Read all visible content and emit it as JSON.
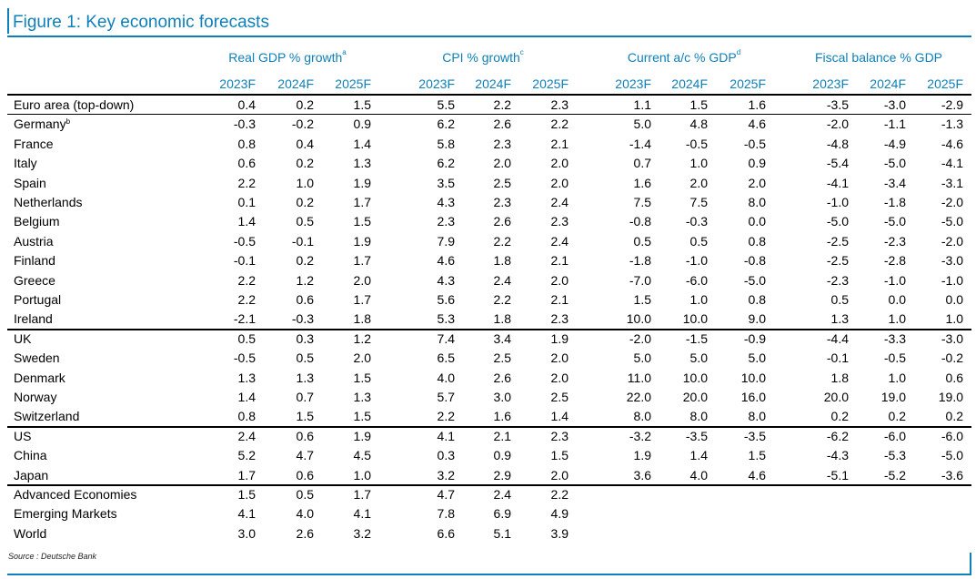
{
  "title": "Figure 1: Key economic forecasts",
  "source": "Source : Deutsche Bank",
  "groups": [
    {
      "label": "Real GDP % growth",
      "note": "a"
    },
    {
      "label": "CPI % growth",
      "note": "c"
    },
    {
      "label": "Current a/c % GDP",
      "note": "d"
    },
    {
      "label": "Fiscal balance % GDP",
      "note": ""
    }
  ],
  "years": [
    "2023F",
    "2024F",
    "2025F"
  ],
  "rows": [
    {
      "label": "Euro area (top-down)",
      "note": "",
      "values": [
        "0.4",
        "0.2",
        "1.5",
        "5.5",
        "2.2",
        "2.3",
        "1.1",
        "1.5",
        "1.6",
        "-3.5",
        "-3.0",
        "-2.9"
      ]
    },
    {
      "label": "Germany",
      "note": "b",
      "values": [
        "-0.3",
        "-0.2",
        "0.9",
        "6.2",
        "2.6",
        "2.2",
        "5.0",
        "4.8",
        "4.6",
        "-2.0",
        "-1.1",
        "-1.3"
      ]
    },
    {
      "label": "France",
      "note": "",
      "values": [
        "0.8",
        "0.4",
        "1.4",
        "5.8",
        "2.3",
        "2.1",
        "-1.4",
        "-0.5",
        "-0.5",
        "-4.8",
        "-4.9",
        "-4.6"
      ]
    },
    {
      "label": "Italy",
      "note": "",
      "values": [
        "0.6",
        "0.2",
        "1.3",
        "6.2",
        "2.0",
        "2.0",
        "0.7",
        "1.0",
        "0.9",
        "-5.4",
        "-5.0",
        "-4.1"
      ]
    },
    {
      "label": "Spain",
      "note": "",
      "values": [
        "2.2",
        "1.0",
        "1.9",
        "3.5",
        "2.5",
        "2.0",
        "1.6",
        "2.0",
        "2.0",
        "-4.1",
        "-3.4",
        "-3.1"
      ]
    },
    {
      "label": "Netherlands",
      "note": "",
      "values": [
        "0.1",
        "0.2",
        "1.7",
        "4.3",
        "2.3",
        "2.4",
        "7.5",
        "7.5",
        "8.0",
        "-1.0",
        "-1.8",
        "-2.0"
      ]
    },
    {
      "label": "Belgium",
      "note": "",
      "values": [
        "1.4",
        "0.5",
        "1.5",
        "2.3",
        "2.6",
        "2.3",
        "-0.8",
        "-0.3",
        "0.0",
        "-5.0",
        "-5.0",
        "-5.0"
      ]
    },
    {
      "label": "Austria",
      "note": "",
      "values": [
        "-0.5",
        "-0.1",
        "1.9",
        "7.9",
        "2.2",
        "2.4",
        "0.5",
        "0.5",
        "0.8",
        "-2.5",
        "-2.3",
        "-2.0"
      ]
    },
    {
      "label": "Finland",
      "note": "",
      "values": [
        "-0.1",
        "0.2",
        "1.7",
        "4.6",
        "1.8",
        "2.1",
        "-1.8",
        "-1.0",
        "-0.8",
        "-2.5",
        "-2.8",
        "-3.0"
      ]
    },
    {
      "label": "Greece",
      "note": "",
      "values": [
        "2.2",
        "1.2",
        "2.0",
        "4.3",
        "2.4",
        "2.0",
        "-7.0",
        "-6.0",
        "-5.0",
        "-2.3",
        "-1.0",
        "-1.0"
      ]
    },
    {
      "label": "Portugal",
      "note": "",
      "values": [
        "2.2",
        "0.6",
        "1.7",
        "5.6",
        "2.2",
        "2.1",
        "1.5",
        "1.0",
        "0.8",
        "0.5",
        "0.0",
        "0.0"
      ]
    },
    {
      "label": "Ireland",
      "note": "",
      "values": [
        "-2.1",
        "-0.3",
        "1.8",
        "5.3",
        "1.8",
        "2.3",
        "10.0",
        "10.0",
        "9.0",
        "1.3",
        "1.0",
        "1.0"
      ]
    },
    {
      "label": "UK",
      "note": "",
      "values": [
        "0.5",
        "0.3",
        "1.2",
        "7.4",
        "3.4",
        "1.9",
        "-2.0",
        "-1.5",
        "-0.9",
        "-4.4",
        "-3.3",
        "-3.0"
      ]
    },
    {
      "label": "Sweden",
      "note": "",
      "values": [
        "-0.5",
        "0.5",
        "2.0",
        "6.5",
        "2.5",
        "2.0",
        "5.0",
        "5.0",
        "5.0",
        "-0.1",
        "-0.5",
        "-0.2"
      ]
    },
    {
      "label": "Denmark",
      "note": "",
      "values": [
        "1.3",
        "1.3",
        "1.5",
        "4.0",
        "2.6",
        "2.0",
        "11.0",
        "10.0",
        "10.0",
        "1.8",
        "1.0",
        "0.6"
      ]
    },
    {
      "label": "Norway",
      "note": "",
      "values": [
        "1.4",
        "0.7",
        "1.3",
        "5.7",
        "3.0",
        "2.5",
        "22.0",
        "20.0",
        "16.0",
        "20.0",
        "19.0",
        "19.0"
      ]
    },
    {
      "label": "Switzerland",
      "note": "",
      "values": [
        "0.8",
        "1.5",
        "1.5",
        "2.2",
        "1.6",
        "1.4",
        "8.0",
        "8.0",
        "8.0",
        "0.2",
        "0.2",
        "0.2"
      ]
    },
    {
      "label": "US",
      "note": "",
      "values": [
        "2.4",
        "0.6",
        "1.9",
        "4.1",
        "2.1",
        "2.3",
        "-3.2",
        "-3.5",
        "-3.5",
        "-6.2",
        "-6.0",
        "-6.0"
      ]
    },
    {
      "label": "China",
      "note": "",
      "values": [
        "5.2",
        "4.7",
        "4.5",
        "0.3",
        "0.9",
        "1.5",
        "1.9",
        "1.4",
        "1.5",
        "-4.3",
        "-5.3",
        "-5.0"
      ]
    },
    {
      "label": "Japan",
      "note": "",
      "values": [
        "1.7",
        "0.6",
        "1.0",
        "3.2",
        "2.9",
        "2.0",
        "3.6",
        "4.0",
        "4.6",
        "-5.1",
        "-5.2",
        "-3.6"
      ]
    },
    {
      "label": "Advanced Economies",
      "note": "",
      "values": [
        "1.5",
        "0.5",
        "1.7",
        "4.7",
        "2.4",
        "2.2",
        "",
        "",
        "",
        "",
        "",
        ""
      ]
    },
    {
      "label": "Emerging Markets",
      "note": "",
      "values": [
        "4.1",
        "4.0",
        "4.1",
        "7.8",
        "6.9",
        "4.9",
        "",
        "",
        "",
        "",
        "",
        ""
      ]
    },
    {
      "label": "World",
      "note": "",
      "values": [
        "3.0",
        "2.6",
        "3.2",
        "6.6",
        "5.1",
        "3.9",
        "",
        "",
        "",
        "",
        "",
        ""
      ]
    }
  ]
}
